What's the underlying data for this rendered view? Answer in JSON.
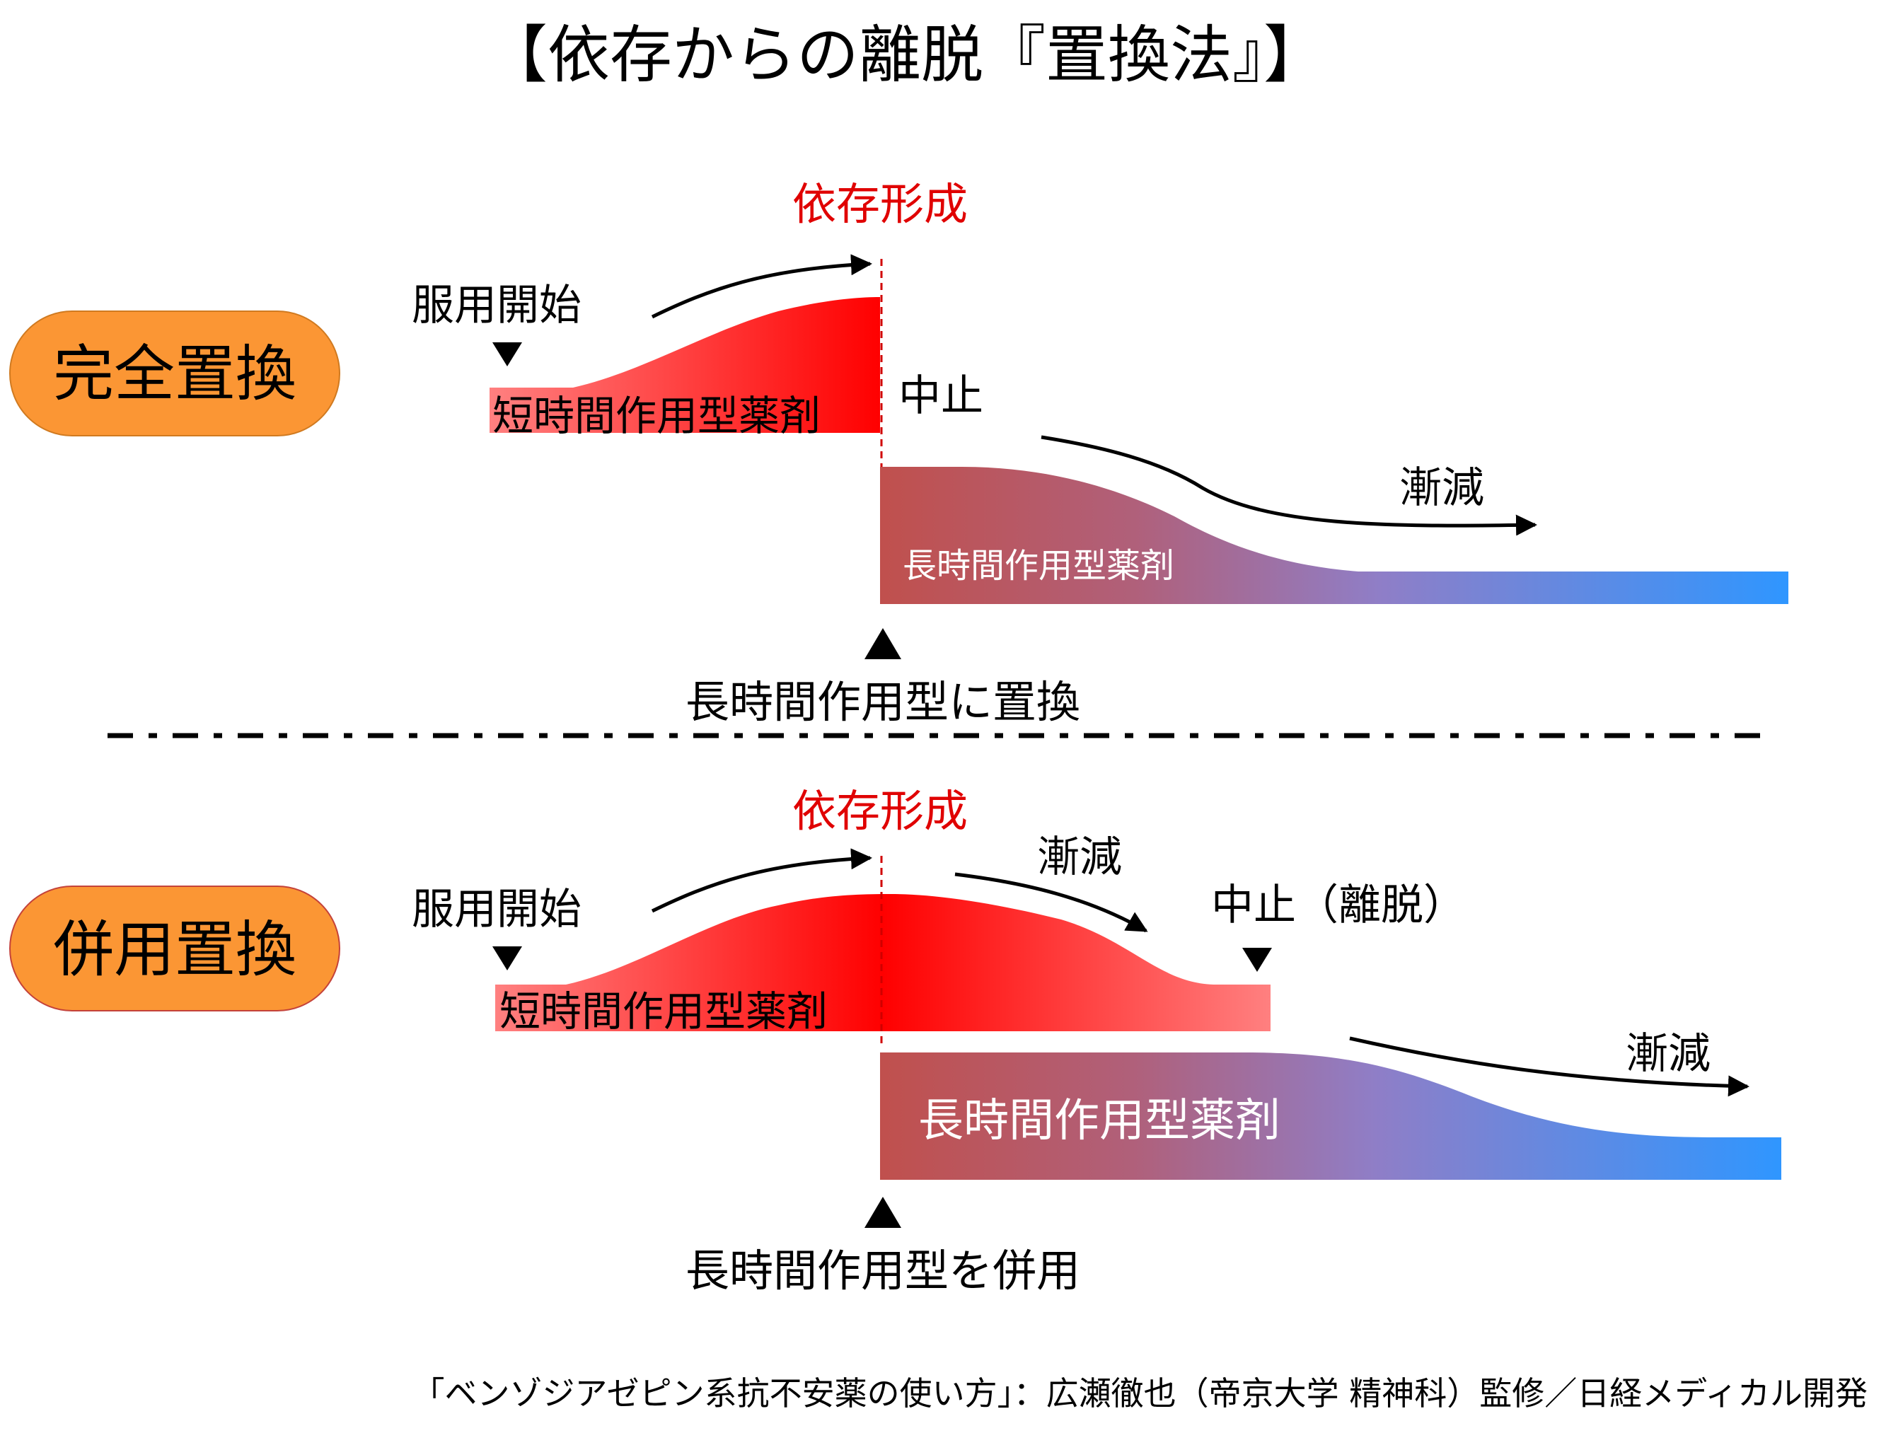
{
  "title": "【依存からの離脱『置換法』】",
  "colors": {
    "text": "#000000",
    "dependence": "#e00000",
    "badge": "#fb9634",
    "short_acting_light": "#ff7f7f",
    "short_acting_dark": "#ff0000",
    "long_acting_start": "#c0504d",
    "long_acting_mid": "#8f7ec7",
    "long_acting_end": "#2f96ff"
  },
  "panel_complete": {
    "badge": "完全置換",
    "start_label": "服用開始",
    "dependence_label": "依存形成",
    "short_acting_label": "短時間作用型薬剤",
    "stop_label": "中止",
    "taper_label": "漸減",
    "long_acting_label": "長時間作用型薬剤",
    "switch_caption": "長時間作用型に置換"
  },
  "panel_combined": {
    "badge": "併用置換",
    "start_label": "服用開始",
    "dependence_label": "依存形成",
    "short_taper_label": "漸減",
    "stop_label": "中止（離脱）",
    "short_acting_label": "短時間作用型薬剤",
    "long_taper_label": "漸減",
    "long_acting_label": "長時間作用型薬剤",
    "switch_caption": "長時間作用型を併用"
  },
  "source": "「ベンゾジアゼピン系抗不安薬の使い方」：広瀬徹也（帝京大学 精神科）監修／日経メディカル開発"
}
